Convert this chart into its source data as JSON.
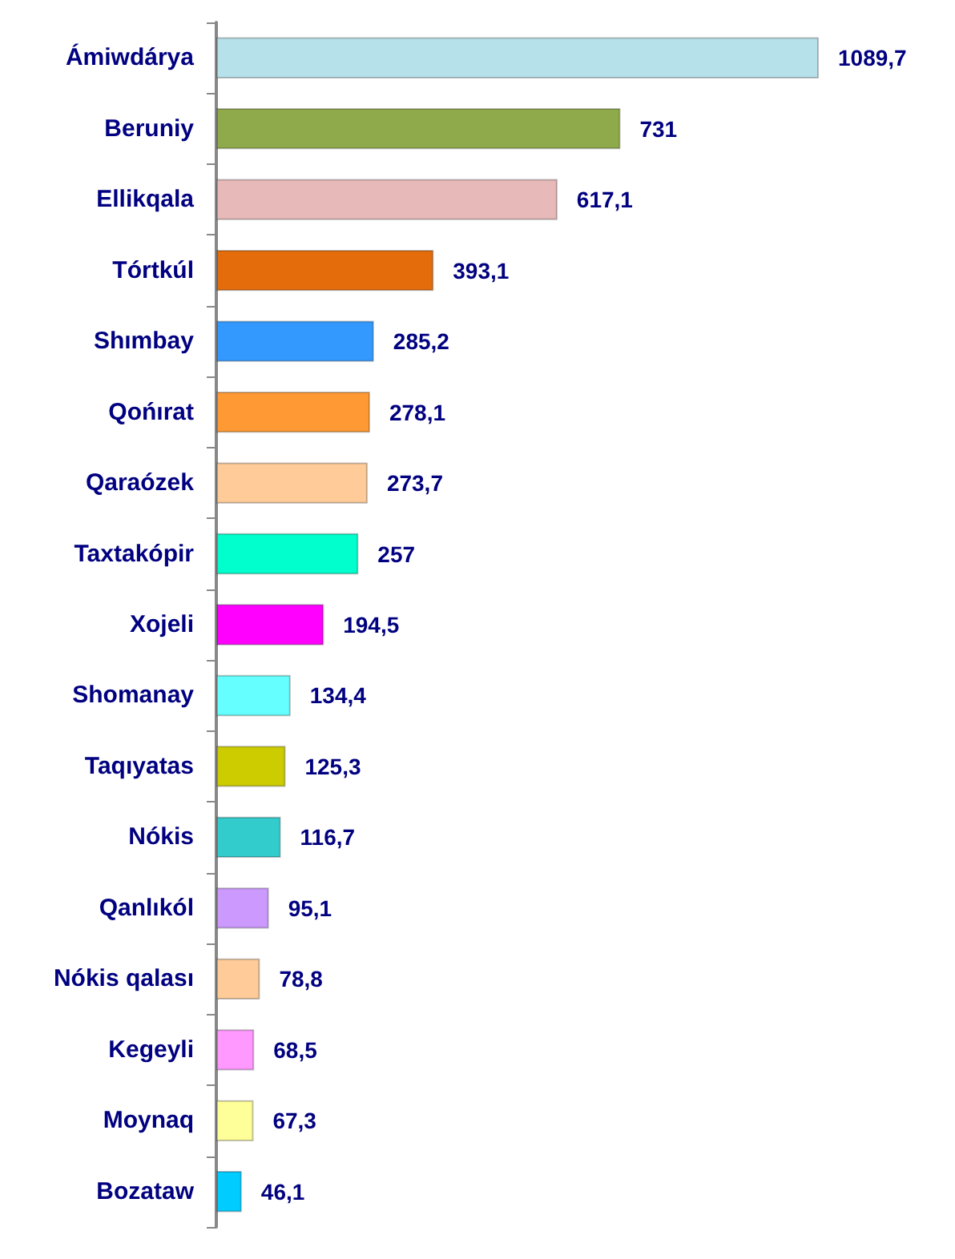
{
  "chart_data": {
    "type": "bar",
    "orientation": "horizontal",
    "categories": [
      "Ámiwdárya",
      "Beruniy",
      "Ellikqala",
      "Tórtkúl",
      "Shımbay",
      "Qońırat",
      "Qaraózek",
      "Taxtakópir",
      "Xojeli",
      "Shomanay",
      "Taqıyatas",
      "Nókis",
      "Qanlıkól",
      "Nókis qalası",
      "Kegeyli",
      "Moynaq",
      "Bozataw"
    ],
    "values": [
      1089.7,
      731,
      617.1,
      393.1,
      285.2,
      278.1,
      273.7,
      257,
      194.5,
      134.4,
      125.3,
      116.7,
      95.1,
      78.8,
      68.5,
      67.3,
      46.1
    ],
    "value_labels": [
      "1089,7",
      "731",
      "617,1",
      "393,1",
      "285,2",
      "278,1",
      "273,7",
      "257",
      "194,5",
      "134,4",
      "125,3",
      "116,7",
      "95,1",
      "78,8",
      "68,5",
      "67,3",
      "46,1"
    ],
    "colors": [
      "#b7e1ea",
      "#8faa4a",
      "#e8b9b9",
      "#e46c0a",
      "#3399ff",
      "#ff9933",
      "#ffcc99",
      "#00ffcc",
      "#ff00ff",
      "#66ffff",
      "#cccc00",
      "#33cccc",
      "#cc99ff",
      "#ffcc99",
      "#ff99ff",
      "#ffff99",
      "#00ccff"
    ]
  }
}
